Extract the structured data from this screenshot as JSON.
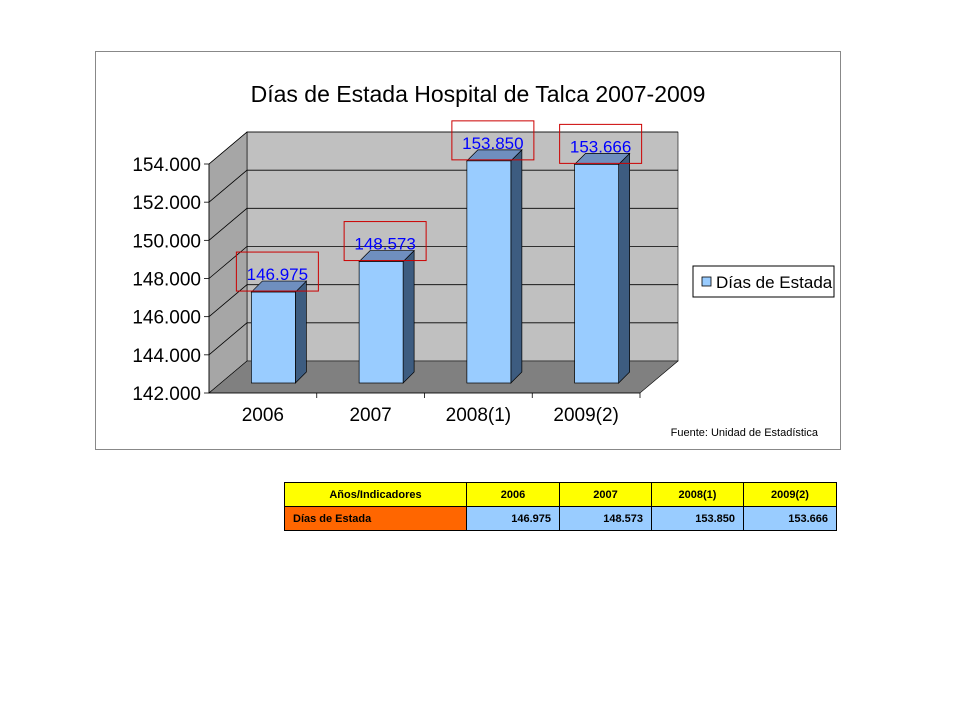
{
  "chart_data": {
    "type": "bar",
    "title": "Días de Estada Hospital de Talca 2007-2009",
    "categories": [
      "2006",
      "2007",
      "2008(1)",
      "2009(2)"
    ],
    "series": [
      {
        "name": "Días de Estada",
        "values": [
          146975,
          148573,
          153850,
          153666
        ]
      }
    ],
    "data_labels": [
      "146.975",
      "148.573",
      "153.850",
      "153.666"
    ],
    "y_ticks": [
      142000,
      144000,
      146000,
      148000,
      150000,
      152000,
      154000
    ],
    "y_tick_labels": [
      "142.000",
      "144.000",
      "146.000",
      "148.000",
      "150.000",
      "152.000",
      "154.000"
    ],
    "ylim": [
      142000,
      154000
    ],
    "legend_position": "right",
    "grid": true,
    "source_note": "Fuente: Unidad de Estadística",
    "colors": {
      "bar_front": "#99ccff",
      "bar_side": "#3d5c80",
      "bar_top": "#6f8fbf",
      "wall": "#c0c0c0",
      "floor": "#808080",
      "label_text": "#0000ff",
      "label_box": "#cc0000"
    }
  },
  "table": {
    "headers": [
      "Años/Indicadores",
      "2006",
      "2007",
      "2008(1)",
      "2009(2)"
    ],
    "row_label": "Días de Estada",
    "values": [
      "146.975",
      "148.573",
      "153.850",
      "153.666"
    ],
    "colors": {
      "header_bg": "#ffff00",
      "row_label_bg": "#ff6600",
      "value_bg": "#99ccff"
    }
  }
}
